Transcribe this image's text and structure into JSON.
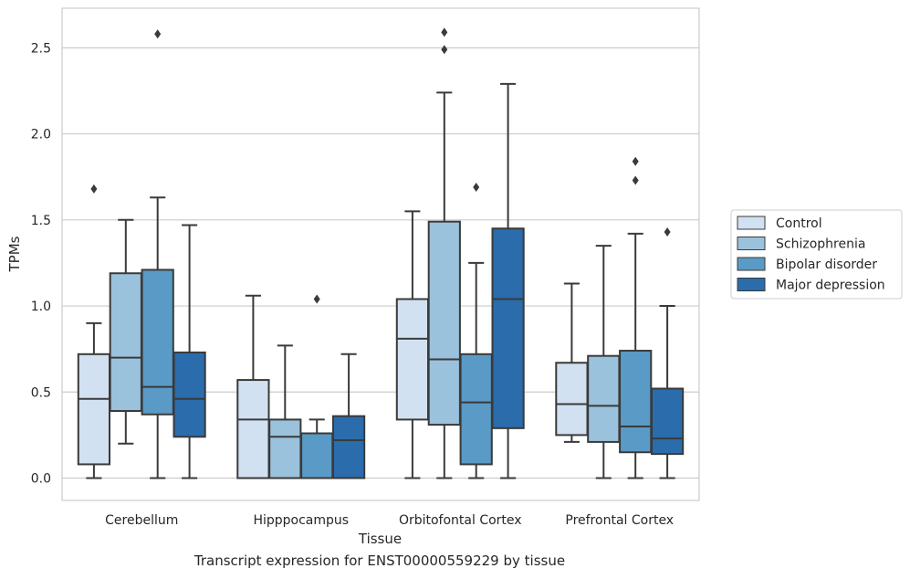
{
  "chart_data": {
    "type": "boxplot",
    "xlabel": "Tissue",
    "ylabel": "TPMs",
    "ylim": [
      -0.13,
      2.73
    ],
    "yticks": [
      0.0,
      0.5,
      1.0,
      1.5,
      2.0,
      2.5
    ],
    "ytick_labels": [
      "0.0",
      "0.5",
      "1.0",
      "1.5",
      "2.0",
      "2.5"
    ],
    "grid": "horizontal",
    "legend_placement": "outside-right",
    "categories": [
      "Cerebellum",
      "Hipppocampus",
      "Orbitofontal Cortex",
      "Prefrontal Cortex"
    ],
    "series": [
      {
        "name": "Control",
        "color": "#d1e1f1",
        "boxes": [
          {
            "q1": 0.08,
            "median": 0.46,
            "q3": 0.72,
            "whislo": 0.0,
            "whishi": 0.9,
            "fliers": [
              1.68
            ]
          },
          {
            "q1": 0.0,
            "median": 0.34,
            "q3": 0.57,
            "whislo": 0.0,
            "whishi": 1.06,
            "fliers": []
          },
          {
            "q1": 0.34,
            "median": 0.81,
            "q3": 1.04,
            "whislo": 0.0,
            "whishi": 1.55,
            "fliers": []
          },
          {
            "q1": 0.25,
            "median": 0.43,
            "q3": 0.67,
            "whislo": 0.21,
            "whishi": 1.13,
            "fliers": []
          }
        ]
      },
      {
        "name": "Schizophrenia",
        "color": "#9bc2dc",
        "boxes": [
          {
            "q1": 0.39,
            "median": 0.7,
            "q3": 1.19,
            "whislo": 0.2,
            "whishi": 1.5,
            "fliers": []
          },
          {
            "q1": 0.0,
            "median": 0.24,
            "q3": 0.34,
            "whislo": 0.0,
            "whishi": 0.77,
            "fliers": []
          },
          {
            "q1": 0.31,
            "median": 0.69,
            "q3": 1.49,
            "whislo": 0.0,
            "whishi": 2.24,
            "fliers": [
              2.49,
              2.59
            ]
          },
          {
            "q1": 0.21,
            "median": 0.42,
            "q3": 0.71,
            "whislo": 0.0,
            "whishi": 1.35,
            "fliers": []
          }
        ]
      },
      {
        "name": "Bipolar disorder",
        "color": "#5a9ac6",
        "boxes": [
          {
            "q1": 0.37,
            "median": 0.53,
            "q3": 1.21,
            "whislo": 0.0,
            "whishi": 1.63,
            "fliers": [
              2.58
            ]
          },
          {
            "q1": 0.0,
            "median": 0.26,
            "q3": 0.26,
            "whislo": 0.0,
            "whishi": 0.34,
            "fliers": [
              1.04
            ]
          },
          {
            "q1": 0.08,
            "median": 0.44,
            "q3": 0.72,
            "whislo": 0.0,
            "whishi": 1.25,
            "fliers": [
              1.69
            ]
          },
          {
            "q1": 0.15,
            "median": 0.3,
            "q3": 0.74,
            "whislo": 0.0,
            "whishi": 1.42,
            "fliers": [
              1.73,
              1.84
            ]
          }
        ]
      },
      {
        "name": "Major depression",
        "color": "#2a6cac",
        "boxes": [
          {
            "q1": 0.24,
            "median": 0.46,
            "q3": 0.73,
            "whislo": 0.0,
            "whishi": 1.47,
            "fliers": []
          },
          {
            "q1": 0.0,
            "median": 0.22,
            "q3": 0.36,
            "whislo": 0.0,
            "whishi": 0.72,
            "fliers": []
          },
          {
            "q1": 0.29,
            "median": 1.04,
            "q3": 1.45,
            "whislo": 0.0,
            "whishi": 2.29,
            "fliers": []
          },
          {
            "q1": 0.14,
            "median": 0.23,
            "q3": 0.52,
            "whislo": 0.0,
            "whishi": 1.0,
            "fliers": [
              1.43
            ]
          }
        ]
      }
    ]
  },
  "caption": "Transcript expression for ENST00000559229 by tissue"
}
